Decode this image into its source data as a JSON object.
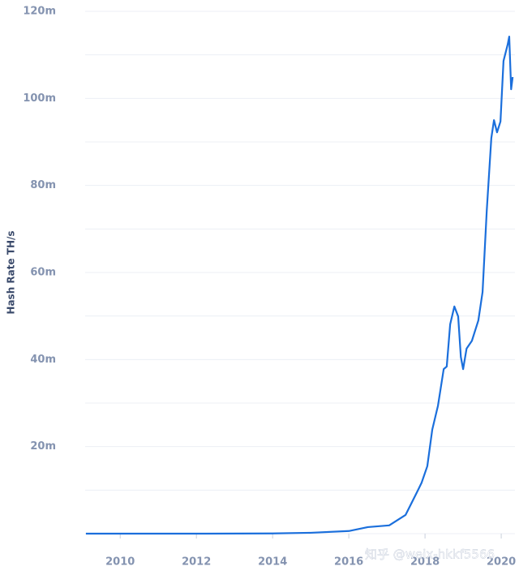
{
  "chart_data": {
    "type": "line",
    "y_label": "Hash Rate TH/s",
    "x": [
      2009.1,
      2012,
      2014,
      2015,
      2016,
      2016.5,
      2017.06,
      2017.49,
      2017.81,
      2017.91,
      2018.06,
      2018.19,
      2018.34,
      2018.49,
      2018.57,
      2018.66,
      2018.77,
      2018.87,
      2018.94,
      2019.0,
      2019.09,
      2019.23,
      2019.4,
      2019.51,
      2019.62,
      2019.74,
      2019.81,
      2019.89,
      2019.98,
      2020.06,
      2020.17,
      2020.21,
      2020.26,
      2020.3
    ],
    "values": [
      0,
      0,
      0.05,
      0.2,
      0.6,
      1.5,
      1.9,
      4.3,
      9.9,
      11.7,
      15.5,
      23.9,
      29.4,
      37.8,
      38.4,
      48.1,
      52.2,
      49.9,
      40.6,
      37.8,
      42.5,
      44.3,
      49,
      55.5,
      74.2,
      90.9,
      95,
      92.2,
      94.7,
      108.6,
      112.4,
      114.2,
      102.1,
      104.9
    ],
    "color": "#1b6fdc",
    "xlim": [
      2009.08,
      2020.36
    ],
    "ylim": [
      0,
      120
    ],
    "xticks": [
      2010,
      2012,
      2014,
      2016,
      2018,
      2020
    ],
    "yticks": [
      {
        "value": 20,
        "label": "20m"
      },
      {
        "value": 40,
        "label": "40m"
      },
      {
        "value": 60,
        "label": "60m"
      },
      {
        "value": 80,
        "label": "80m"
      },
      {
        "value": 100,
        "label": "100m"
      },
      {
        "value": 120,
        "label": "120m"
      }
    ],
    "minor_grid": [
      0,
      10,
      30,
      50,
      70,
      90,
      110
    ],
    "grid": true,
    "watermark": "知乎 @weix-hkkf5566"
  }
}
